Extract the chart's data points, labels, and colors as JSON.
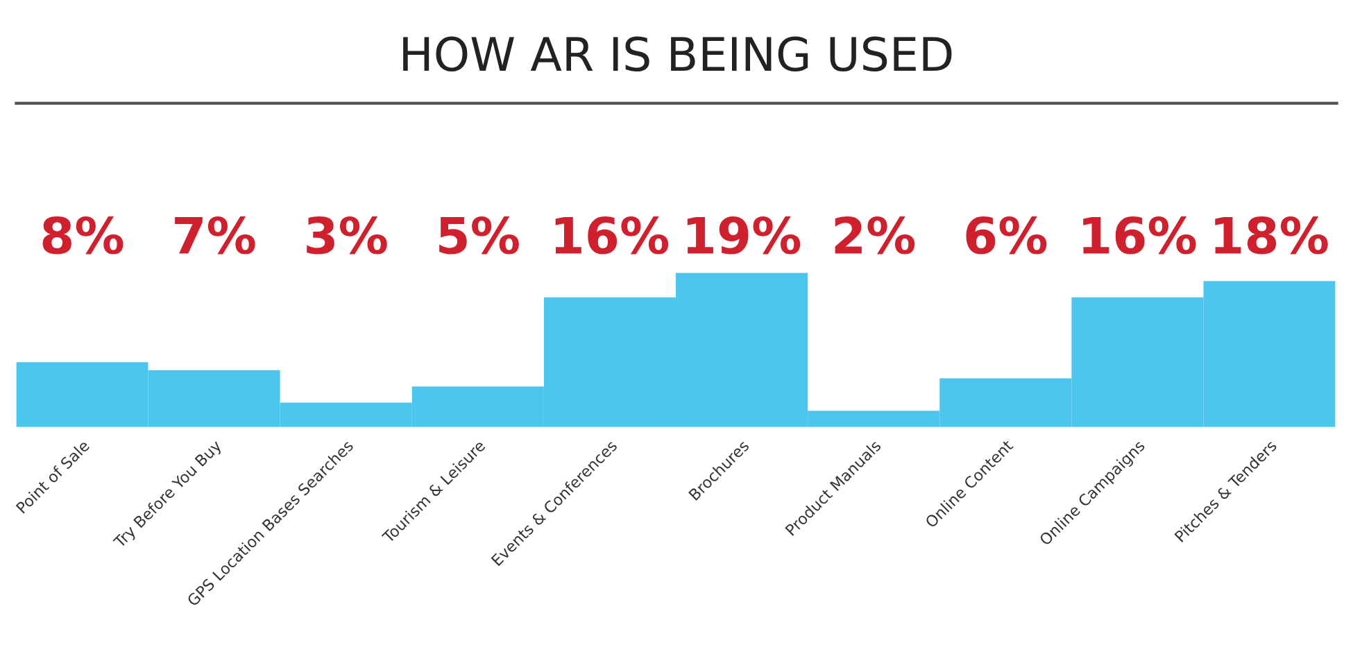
{
  "chart_data": {
    "type": "bar",
    "title": "HOW AR IS BEING USED",
    "categories": [
      "Point of Sale",
      "Try Before You Buy",
      "GPS Location Bases Searches",
      "Tourism & Leisure",
      "Events & Conferences",
      "Brochures",
      "Product Manuals",
      "Online Content",
      "Online Campaigns",
      "Pitches & Tenders"
    ],
    "values": [
      8,
      7,
      3,
      5,
      16,
      19,
      2,
      6,
      16,
      18
    ],
    "value_labels": [
      "8%",
      "7%",
      "3%",
      "5%",
      "16%",
      "19%",
      "2%",
      "6%",
      "16%",
      "18%"
    ],
    "color": "#4cc6ef"
  }
}
